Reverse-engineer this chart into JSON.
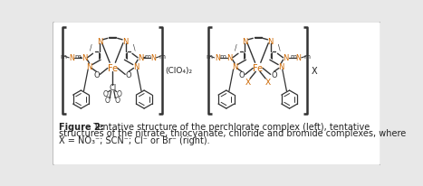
{
  "fig_width": 4.67,
  "fig_height": 2.07,
  "dpi": 100,
  "bg_color": "#e8e8e8",
  "panel_bg": "#ffffff",
  "border_color": "#bbbbbb",
  "fe_color": "#cc6600",
  "n_color": "#cc6600",
  "bond_color": "#333333",
  "dark_color": "#222222",
  "caption_line1": "Figure 2:  Tentative structure of the perchlorate complex (left), tentative",
  "caption_line2": "structures of the nitrate, thiocyanate, chloride and bromide complexes, where",
  "caption_line3": "X = NO₃⁻; SCN⁻; Cl⁻ or Br⁻ (right).",
  "caption_bold": "Figure 2:",
  "perchlorate_label": "(ClO₄)₂",
  "x_label": "X",
  "caption_fontsize": 7.0
}
